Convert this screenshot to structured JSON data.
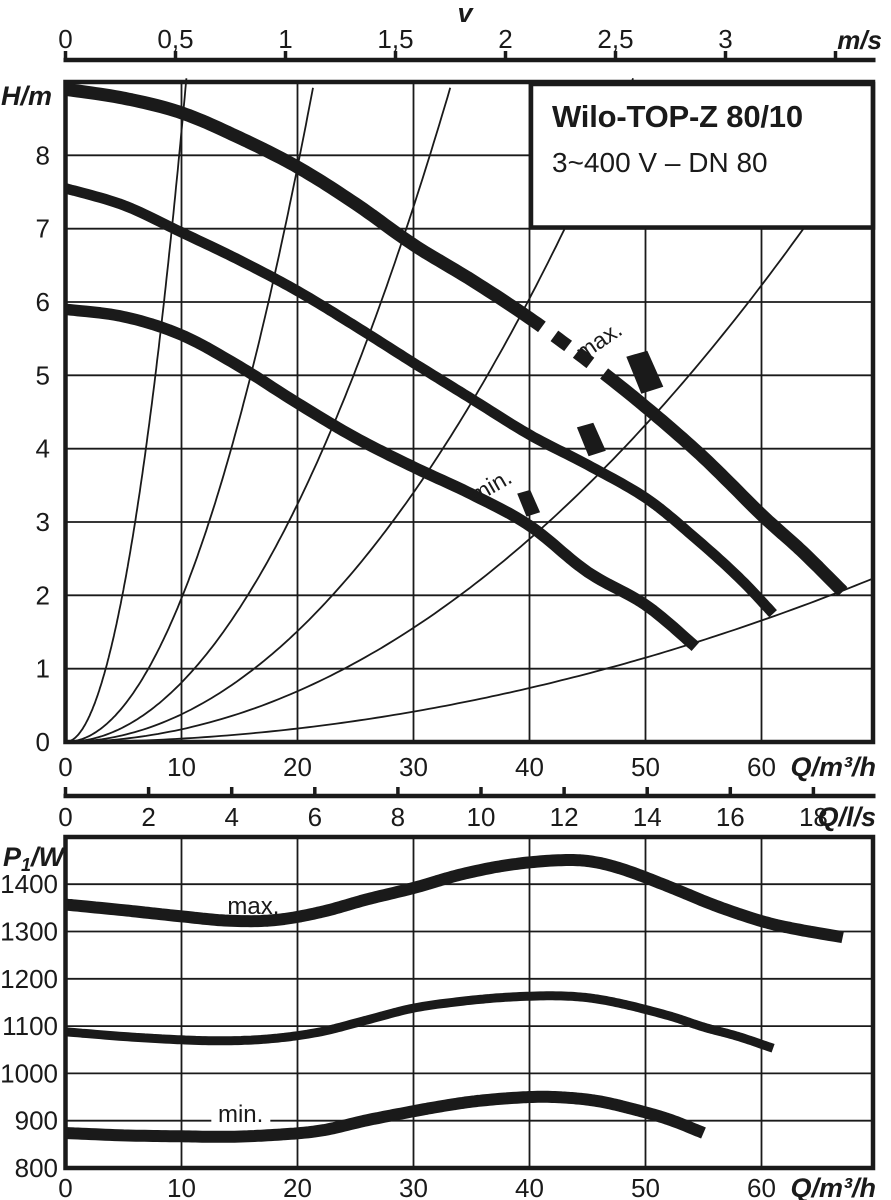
{
  "figure": {
    "title": "Wilo-TOP-Z 80/10",
    "subtitle": "3~400 V – DN 80",
    "colors": {
      "ink": "#1a1a1a",
      "bg": "#ffffff"
    }
  },
  "chart_data": [
    {
      "id": "head-flow-chart",
      "type": "line",
      "title": "Wilo-TOP-Z 80/10",
      "subtitle": "3~400 V – DN 80",
      "xlabel": "Q/m³/h",
      "ylabel": "H/m",
      "xlim": [
        0,
        69.6
      ],
      "ylim": [
        0,
        9
      ],
      "grid": true,
      "x_ticks": [
        0,
        10,
        20,
        30,
        40,
        50,
        60
      ],
      "y_ticks": [
        0,
        1,
        2,
        3,
        4,
        5,
        6,
        7,
        8
      ],
      "secondary_axes": [
        {
          "position": "top",
          "label": "v",
          "unit": "m/s",
          "tick_values": [
            0,
            0.5,
            1,
            1.5,
            2,
            2.5,
            3,
            3.5
          ],
          "tick_labels": [
            "0",
            "0,5",
            "1",
            "1,5",
            "2",
            "2,5",
            "3",
            ""
          ]
        },
        {
          "position": "bottom",
          "label": "Q/l/s",
          "tick_values": [
            0,
            2,
            4,
            6,
            8,
            10,
            12,
            14,
            16,
            18
          ]
        }
      ],
      "series": [
        {
          "name": "max.",
          "points": [
            [
              0,
              8.9
            ],
            [
              5,
              8.78
            ],
            [
              10,
              8.58
            ],
            [
              15,
              8.24
            ],
            [
              20,
              7.84
            ],
            [
              25,
              7.34
            ],
            [
              30,
              6.78
            ],
            [
              35,
              6.3
            ],
            [
              40,
              5.78
            ],
            [
              45,
              5.2
            ],
            [
              50,
              4.57
            ],
            [
              55,
              3.88
            ],
            [
              60,
              3.1
            ],
            [
              63.5,
              2.6
            ],
            [
              67,
              2.05
            ]
          ],
          "dash_section": {
            "gap_start": 41.2,
            "dash_start": 42.0,
            "dash_end": 45.6,
            "solid_resume": 46.3
          }
        },
        {
          "name": "",
          "points": [
            [
              0,
              7.55
            ],
            [
              5,
              7.32
            ],
            [
              10,
              6.95
            ],
            [
              15,
              6.57
            ],
            [
              20,
              6.15
            ],
            [
              25,
              5.67
            ],
            [
              30,
              5.17
            ],
            [
              35,
              4.68
            ],
            [
              40,
              4.19
            ],
            [
              45,
              3.78
            ],
            [
              50,
              3.33
            ],
            [
              54,
              2.82
            ],
            [
              58,
              2.25
            ],
            [
              61,
              1.75
            ]
          ]
        },
        {
          "name": "min.",
          "points": [
            [
              0,
              5.9
            ],
            [
              5,
              5.8
            ],
            [
              10,
              5.55
            ],
            [
              15,
              5.12
            ],
            [
              20,
              4.62
            ],
            [
              25,
              4.15
            ],
            [
              30,
              3.75
            ],
            [
              35,
              3.38
            ],
            [
              40,
              2.95
            ],
            [
              45,
              2.32
            ],
            [
              50,
              1.87
            ],
            [
              54.3,
              1.3
            ]
          ]
        }
      ],
      "system_curves": {
        "description": "pipe system parabolas H=k·Q²",
        "exponent": 2,
        "coefficients": [
          0.0833,
          0.0196,
          0.00811,
          0.00378,
          0.00173,
          0.00046
        ]
      },
      "annotations": [
        {
          "text": "max.",
          "x": 46.0,
          "y": 5.47,
          "angle": -34
        },
        {
          "text": "min.",
          "x": 36.7,
          "y": 3.49,
          "angle": -30
        }
      ],
      "flags": [
        {
          "x": 49.9,
          "y": 5.05,
          "scale": 1.0
        },
        {
          "x": 45.3,
          "y": 4.13,
          "scale": 0.78
        },
        {
          "x": 39.9,
          "y": 3.26,
          "scale": 0.62
        }
      ]
    },
    {
      "id": "power-flow-chart",
      "type": "line",
      "xlabel": "Q/m³/h",
      "ylabel": {
        "sym": "P",
        "sub": "1",
        "unit": "/W"
      },
      "xlim": [
        0,
        69.6
      ],
      "ylim": [
        800,
        1500
      ],
      "grid": true,
      "x_ticks": [
        0,
        10,
        20,
        30,
        40,
        50,
        60
      ],
      "y_ticks": [
        800,
        900,
        1000,
        1100,
        1200,
        1300,
        1400
      ],
      "series": [
        {
          "name": "max.",
          "points": [
            [
              0,
              1357
            ],
            [
              5,
              1345
            ],
            [
              10,
              1332
            ],
            [
              14,
              1323
            ],
            [
              18,
              1324
            ],
            [
              22,
              1341
            ],
            [
              26,
              1368
            ],
            [
              30,
              1392
            ],
            [
              34,
              1420
            ],
            [
              38,
              1440
            ],
            [
              42,
              1450
            ],
            [
              45,
              1449
            ],
            [
              48,
              1432
            ],
            [
              52,
              1395
            ],
            [
              56,
              1355
            ],
            [
              60,
              1322
            ],
            [
              63,
              1305
            ],
            [
              67,
              1288
            ]
          ]
        },
        {
          "name": "",
          "points": [
            [
              0,
              1088
            ],
            [
              5,
              1078
            ],
            [
              10,
              1071
            ],
            [
              14,
              1069
            ],
            [
              18,
              1074
            ],
            [
              22,
              1088
            ],
            [
              26,
              1113
            ],
            [
              30,
              1138
            ],
            [
              34,
              1152
            ],
            [
              38,
              1161
            ],
            [
              42,
              1164
            ],
            [
              45,
              1160
            ],
            [
              48,
              1147
            ],
            [
              52,
              1122
            ],
            [
              55,
              1098
            ],
            [
              58,
              1078
            ],
            [
              61,
              1053
            ]
          ]
        },
        {
          "name": "min.",
          "points": [
            [
              0,
              874
            ],
            [
              5,
              869
            ],
            [
              10,
              867
            ],
            [
              14,
              866
            ],
            [
              18,
              870
            ],
            [
              22,
              879
            ],
            [
              26,
              901
            ],
            [
              30,
              920
            ],
            [
              33,
              933
            ],
            [
              36,
              943
            ],
            [
              40,
              950
            ],
            [
              43,
              949
            ],
            [
              46,
              941
            ],
            [
              49,
              924
            ],
            [
              52,
              903
            ],
            [
              55,
              874
            ]
          ]
        }
      ],
      "annotations": [
        {
          "text": "max.",
          "x": 16.2,
          "y": 1352,
          "angle": 0,
          "bg": false
        },
        {
          "text": "min.",
          "x": 15.1,
          "y": 911,
          "angle": 0,
          "bg": true
        }
      ]
    }
  ]
}
